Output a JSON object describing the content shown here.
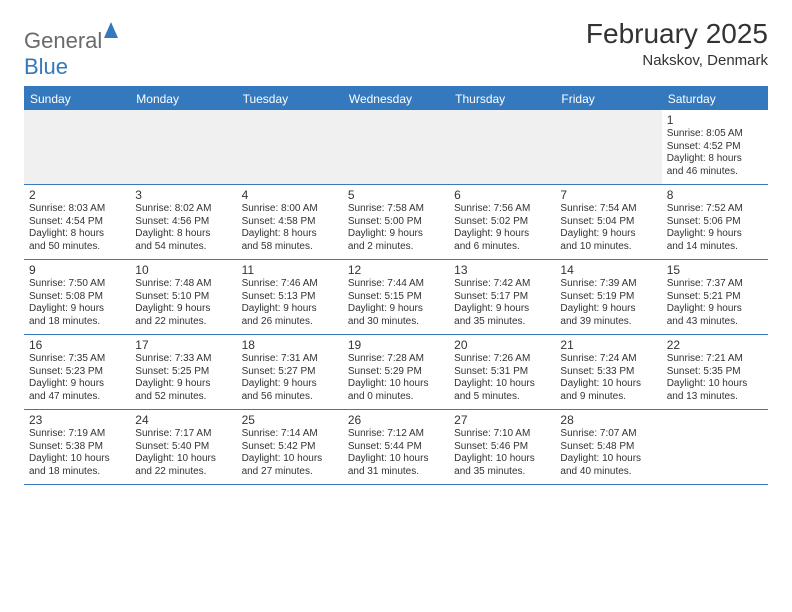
{
  "logo": {
    "text_general": "General",
    "text_blue": "Blue"
  },
  "header": {
    "month_title": "February 2025",
    "location": "Nakskov, Denmark"
  },
  "colors": {
    "brand_blue": "#3478bd",
    "text": "#333333",
    "bg": "#ffffff",
    "alt_bg": "#f0f0f0",
    "logo_gray": "#6a6a6a"
  },
  "day_names": [
    "Sunday",
    "Monday",
    "Tuesday",
    "Wednesday",
    "Thursday",
    "Friday",
    "Saturday"
  ],
  "weeks": [
    [
      null,
      null,
      null,
      null,
      null,
      null,
      {
        "n": "1",
        "sr": "Sunrise: 8:05 AM",
        "ss": "Sunset: 4:52 PM",
        "dl1": "Daylight: 8 hours",
        "dl2": "and 46 minutes."
      }
    ],
    [
      {
        "n": "2",
        "sr": "Sunrise: 8:03 AM",
        "ss": "Sunset: 4:54 PM",
        "dl1": "Daylight: 8 hours",
        "dl2": "and 50 minutes."
      },
      {
        "n": "3",
        "sr": "Sunrise: 8:02 AM",
        "ss": "Sunset: 4:56 PM",
        "dl1": "Daylight: 8 hours",
        "dl2": "and 54 minutes."
      },
      {
        "n": "4",
        "sr": "Sunrise: 8:00 AM",
        "ss": "Sunset: 4:58 PM",
        "dl1": "Daylight: 8 hours",
        "dl2": "and 58 minutes."
      },
      {
        "n": "5",
        "sr": "Sunrise: 7:58 AM",
        "ss": "Sunset: 5:00 PM",
        "dl1": "Daylight: 9 hours",
        "dl2": "and 2 minutes."
      },
      {
        "n": "6",
        "sr": "Sunrise: 7:56 AM",
        "ss": "Sunset: 5:02 PM",
        "dl1": "Daylight: 9 hours",
        "dl2": "and 6 minutes."
      },
      {
        "n": "7",
        "sr": "Sunrise: 7:54 AM",
        "ss": "Sunset: 5:04 PM",
        "dl1": "Daylight: 9 hours",
        "dl2": "and 10 minutes."
      },
      {
        "n": "8",
        "sr": "Sunrise: 7:52 AM",
        "ss": "Sunset: 5:06 PM",
        "dl1": "Daylight: 9 hours",
        "dl2": "and 14 minutes."
      }
    ],
    [
      {
        "n": "9",
        "sr": "Sunrise: 7:50 AM",
        "ss": "Sunset: 5:08 PM",
        "dl1": "Daylight: 9 hours",
        "dl2": "and 18 minutes."
      },
      {
        "n": "10",
        "sr": "Sunrise: 7:48 AM",
        "ss": "Sunset: 5:10 PM",
        "dl1": "Daylight: 9 hours",
        "dl2": "and 22 minutes."
      },
      {
        "n": "11",
        "sr": "Sunrise: 7:46 AM",
        "ss": "Sunset: 5:13 PM",
        "dl1": "Daylight: 9 hours",
        "dl2": "and 26 minutes."
      },
      {
        "n": "12",
        "sr": "Sunrise: 7:44 AM",
        "ss": "Sunset: 5:15 PM",
        "dl1": "Daylight: 9 hours",
        "dl2": "and 30 minutes."
      },
      {
        "n": "13",
        "sr": "Sunrise: 7:42 AM",
        "ss": "Sunset: 5:17 PM",
        "dl1": "Daylight: 9 hours",
        "dl2": "and 35 minutes."
      },
      {
        "n": "14",
        "sr": "Sunrise: 7:39 AM",
        "ss": "Sunset: 5:19 PM",
        "dl1": "Daylight: 9 hours",
        "dl2": "and 39 minutes."
      },
      {
        "n": "15",
        "sr": "Sunrise: 7:37 AM",
        "ss": "Sunset: 5:21 PM",
        "dl1": "Daylight: 9 hours",
        "dl2": "and 43 minutes."
      }
    ],
    [
      {
        "n": "16",
        "sr": "Sunrise: 7:35 AM",
        "ss": "Sunset: 5:23 PM",
        "dl1": "Daylight: 9 hours",
        "dl2": "and 47 minutes."
      },
      {
        "n": "17",
        "sr": "Sunrise: 7:33 AM",
        "ss": "Sunset: 5:25 PM",
        "dl1": "Daylight: 9 hours",
        "dl2": "and 52 minutes."
      },
      {
        "n": "18",
        "sr": "Sunrise: 7:31 AM",
        "ss": "Sunset: 5:27 PM",
        "dl1": "Daylight: 9 hours",
        "dl2": "and 56 minutes."
      },
      {
        "n": "19",
        "sr": "Sunrise: 7:28 AM",
        "ss": "Sunset: 5:29 PM",
        "dl1": "Daylight: 10 hours",
        "dl2": "and 0 minutes."
      },
      {
        "n": "20",
        "sr": "Sunrise: 7:26 AM",
        "ss": "Sunset: 5:31 PM",
        "dl1": "Daylight: 10 hours",
        "dl2": "and 5 minutes."
      },
      {
        "n": "21",
        "sr": "Sunrise: 7:24 AM",
        "ss": "Sunset: 5:33 PM",
        "dl1": "Daylight: 10 hours",
        "dl2": "and 9 minutes."
      },
      {
        "n": "22",
        "sr": "Sunrise: 7:21 AM",
        "ss": "Sunset: 5:35 PM",
        "dl1": "Daylight: 10 hours",
        "dl2": "and 13 minutes."
      }
    ],
    [
      {
        "n": "23",
        "sr": "Sunrise: 7:19 AM",
        "ss": "Sunset: 5:38 PM",
        "dl1": "Daylight: 10 hours",
        "dl2": "and 18 minutes."
      },
      {
        "n": "24",
        "sr": "Sunrise: 7:17 AM",
        "ss": "Sunset: 5:40 PM",
        "dl1": "Daylight: 10 hours",
        "dl2": "and 22 minutes."
      },
      {
        "n": "25",
        "sr": "Sunrise: 7:14 AM",
        "ss": "Sunset: 5:42 PM",
        "dl1": "Daylight: 10 hours",
        "dl2": "and 27 minutes."
      },
      {
        "n": "26",
        "sr": "Sunrise: 7:12 AM",
        "ss": "Sunset: 5:44 PM",
        "dl1": "Daylight: 10 hours",
        "dl2": "and 31 minutes."
      },
      {
        "n": "27",
        "sr": "Sunrise: 7:10 AM",
        "ss": "Sunset: 5:46 PM",
        "dl1": "Daylight: 10 hours",
        "dl2": "and 35 minutes."
      },
      {
        "n": "28",
        "sr": "Sunrise: 7:07 AM",
        "ss": "Sunset: 5:48 PM",
        "dl1": "Daylight: 10 hours",
        "dl2": "and 40 minutes."
      },
      null
    ]
  ]
}
